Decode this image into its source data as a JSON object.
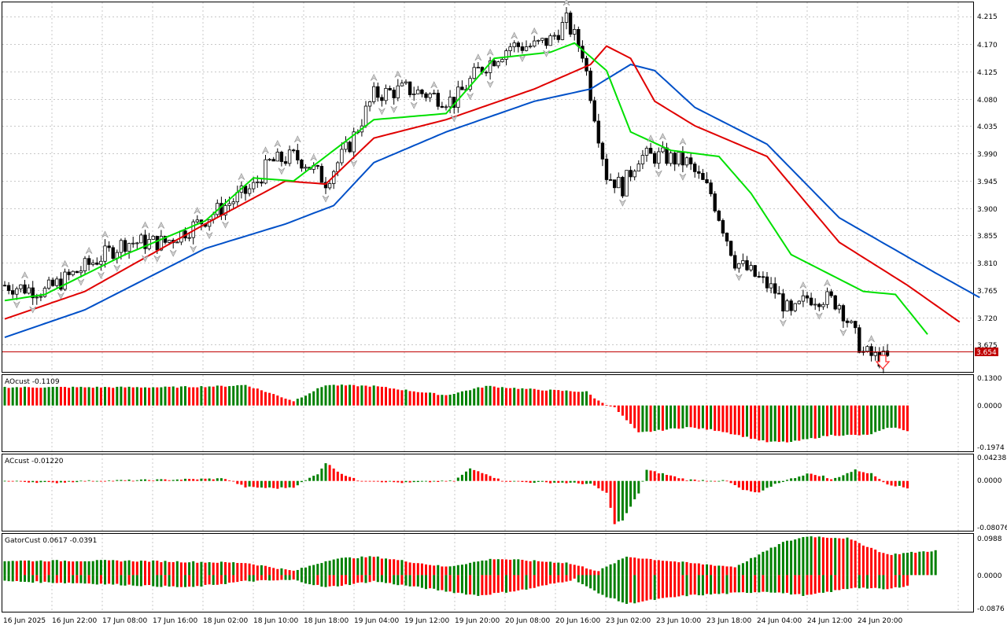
{
  "colors": {
    "bull": "#008000",
    "bear": "#ff0000",
    "jaw": "#0050c8",
    "teeth": "#e00000",
    "lips": "#00e000",
    "grid": "#c8c8c8",
    "price_line": "#c00000",
    "price_tag_bg": "#c00000"
  },
  "main": {
    "price_labels": [
      "4.215",
      "4.170",
      "4.125",
      "4.080",
      "4.035",
      "3.990",
      "3.945",
      "3.900",
      "3.855",
      "3.810",
      "3.765",
      "3.720",
      "3.675"
    ],
    "current_price": "3.654",
    "sell_arrow_icon": "down-arrow-icon",
    "fractal_icon": "fractal-arrow-icon"
  },
  "panels": {
    "ao": {
      "label": "AOcust -0.1109",
      "scale": [
        "0.1300",
        "0.0000",
        "-0.1974"
      ]
    },
    "ac": {
      "label": "ACcust -0.01220",
      "scale": [
        "0.04238",
        "0.0000",
        "-0.08076"
      ]
    },
    "gator": {
      "label": "GatorCust 0.0617 -0.0391",
      "scale": [
        "0.0988",
        "0.0000",
        "-0.0876"
      ]
    }
  },
  "time_labels": [
    "16 Jun 2025",
    "16 Jun 22:00",
    "17 Jun 08:00",
    "17 Jun 16:00",
    "18 Jun 02:00",
    "18 Jun 10:00",
    "18 Jun 18:00",
    "19 Jun 04:00",
    "19 Jun 12:00",
    "19 Jun 20:00",
    "20 Jun 08:00",
    "20 Jun 16:00",
    "23 Jun 02:00",
    "23 Jun 10:00",
    "23 Jun 18:00",
    "24 Jun 04:00",
    "24 Jun 12:00",
    "24 Jun 20:00"
  ],
  "chart_data": {
    "type": "candlestick",
    "y_range": [
      3.63,
      4.23
    ],
    "close_path": [
      [
        0,
        3.77
      ],
      [
        10,
        3.76
      ],
      [
        20,
        3.8
      ],
      [
        30,
        3.84
      ],
      [
        40,
        3.84
      ],
      [
        48,
        3.87
      ],
      [
        55,
        3.9
      ],
      [
        62,
        3.93
      ],
      [
        66,
        3.97
      ],
      [
        72,
        3.98
      ],
      [
        75,
        3.97
      ],
      [
        80,
        3.94
      ],
      [
        86,
        4.0
      ],
      [
        92,
        4.08
      ],
      [
        100,
        4.09
      ],
      [
        106,
        4.08
      ],
      [
        112,
        4.07
      ],
      [
        118,
        4.12
      ],
      [
        126,
        4.16
      ],
      [
        132,
        4.16
      ],
      [
        136,
        4.17
      ],
      [
        140,
        4.2
      ],
      [
        144,
        4.15
      ],
      [
        150,
        3.95
      ],
      [
        154,
        3.93
      ],
      [
        158,
        3.98
      ],
      [
        164,
        3.98
      ],
      [
        170,
        3.97
      ],
      [
        176,
        3.92
      ],
      [
        182,
        3.81
      ],
      [
        188,
        3.78
      ],
      [
        192,
        3.76
      ],
      [
        196,
        3.72
      ],
      [
        200,
        3.75
      ],
      [
        204,
        3.75
      ],
      [
        208,
        3.74
      ],
      [
        211,
        3.7
      ],
      [
        214,
        3.66
      ],
      [
        218,
        3.65
      ],
      [
        220,
        3.65
      ]
    ],
    "alligator": {
      "jaw": [
        [
          0,
          3.685
        ],
        [
          20,
          3.73
        ],
        [
          50,
          3.83
        ],
        [
          70,
          3.87
        ],
        [
          82,
          3.9
        ],
        [
          92,
          3.97
        ],
        [
          110,
          4.02
        ],
        [
          132,
          4.07
        ],
        [
          146,
          4.09
        ],
        [
          156,
          4.13
        ],
        [
          162,
          4.12
        ],
        [
          172,
          4.06
        ],
        [
          190,
          4.0
        ],
        [
          208,
          3.88
        ],
        [
          232,
          3.79
        ],
        [
          243,
          3.75
        ]
      ],
      "teeth": [
        [
          0,
          3.715
        ],
        [
          20,
          3.76
        ],
        [
          50,
          3.87
        ],
        [
          70,
          3.94
        ],
        [
          80,
          3.935
        ],
        [
          92,
          4.01
        ],
        [
          110,
          4.04
        ],
        [
          132,
          4.09
        ],
        [
          146,
          4.13
        ],
        [
          150,
          4.16
        ],
        [
          156,
          4.14
        ],
        [
          162,
          4.07
        ],
        [
          172,
          4.03
        ],
        [
          190,
          3.98
        ],
        [
          208,
          3.84
        ],
        [
          225,
          3.77
        ],
        [
          238,
          3.71
        ]
      ],
      "lips": [
        [
          0,
          3.745
        ],
        [
          10,
          3.755
        ],
        [
          30,
          3.82
        ],
        [
          50,
          3.875
        ],
        [
          62,
          3.945
        ],
        [
          72,
          3.94
        ],
        [
          92,
          4.04
        ],
        [
          110,
          4.05
        ],
        [
          122,
          4.14
        ],
        [
          136,
          4.15
        ],
        [
          142,
          4.165
        ],
        [
          150,
          4.12
        ],
        [
          156,
          4.02
        ],
        [
          166,
          3.99
        ],
        [
          178,
          3.98
        ],
        [
          186,
          3.92
        ],
        [
          196,
          3.82
        ],
        [
          208,
          3.78
        ],
        [
          214,
          3.76
        ],
        [
          222,
          3.755
        ],
        [
          230,
          3.69
        ]
      ]
    },
    "ao": {
      "range": [
        -0.1974,
        0.13
      ],
      "samples": [
        [
          0,
          0.08
        ],
        [
          25,
          0.08
        ],
        [
          40,
          0.08
        ],
        [
          55,
          0.085
        ],
        [
          60,
          0.09
        ],
        [
          72,
          0.02
        ],
        [
          80,
          0.09
        ],
        [
          92,
          0.085
        ],
        [
          110,
          0.045
        ],
        [
          120,
          0.085
        ],
        [
          132,
          0.07
        ],
        [
          145,
          0.06
        ],
        [
          148,
          0.02
        ],
        [
          152,
          -0.01
        ],
        [
          158,
          -0.12
        ],
        [
          170,
          -0.095
        ],
        [
          178,
          -0.11
        ],
        [
          190,
          -0.16
        ],
        [
          196,
          -0.16
        ],
        [
          206,
          -0.13
        ],
        [
          215,
          -0.13
        ],
        [
          221,
          -0.095
        ],
        [
          225,
          -0.11
        ]
      ]
    },
    "ac": {
      "range": [
        -0.08076,
        0.04238
      ],
      "samples": [
        [
          0,
          0.0
        ],
        [
          12,
          -0.003
        ],
        [
          20,
          0.0
        ],
        [
          40,
          0.002
        ],
        [
          55,
          0.004
        ],
        [
          60,
          -0.01
        ],
        [
          68,
          -0.012
        ],
        [
          72,
          -0.01
        ],
        [
          78,
          0.012
        ],
        [
          80,
          0.03
        ],
        [
          84,
          0.012
        ],
        [
          88,
          0.001
        ],
        [
          100,
          -0.003
        ],
        [
          112,
          0.0
        ],
        [
          116,
          0.02
        ],
        [
          120,
          0.012
        ],
        [
          124,
          0.0
        ],
        [
          130,
          -0.002
        ],
        [
          140,
          -0.003
        ],
        [
          146,
          -0.005
        ],
        [
          150,
          -0.02
        ],
        [
          152,
          -0.07
        ],
        [
          154,
          -0.065
        ],
        [
          158,
          -0.02
        ],
        [
          160,
          0.018
        ],
        [
          164,
          0.012
        ],
        [
          170,
          0.002
        ],
        [
          180,
          0.0
        ],
        [
          184,
          -0.015
        ],
        [
          188,
          -0.02
        ],
        [
          192,
          -0.005
        ],
        [
          200,
          0.012
        ],
        [
          204,
          0.008
        ],
        [
          206,
          0.002
        ],
        [
          212,
          0.018
        ],
        [
          216,
          0.012
        ],
        [
          220,
          -0.005
        ],
        [
          225,
          -0.012
        ]
      ]
    },
    "gator": {
      "range": [
        -0.0876,
        0.0988
      ],
      "upper": [
        [
          0,
          0.035
        ],
        [
          30,
          0.035
        ],
        [
          60,
          0.03
        ],
        [
          72,
          0.01
        ],
        [
          82,
          0.04
        ],
        [
          92,
          0.045
        ],
        [
          110,
          0.02
        ],
        [
          122,
          0.04
        ],
        [
          140,
          0.03
        ],
        [
          148,
          0.01
        ],
        [
          155,
          0.045
        ],
        [
          170,
          0.03
        ],
        [
          182,
          0.02
        ],
        [
          194,
          0.08
        ],
        [
          200,
          0.095
        ],
        [
          210,
          0.09
        ],
        [
          220,
          0.05
        ],
        [
          232,
          0.06
        ]
      ],
      "lower": [
        [
          0,
          -0.015
        ],
        [
          20,
          -0.02
        ],
        [
          46,
          -0.03
        ],
        [
          60,
          -0.015
        ],
        [
          72,
          -0.012
        ],
        [
          80,
          -0.03
        ],
        [
          92,
          -0.015
        ],
        [
          118,
          -0.05
        ],
        [
          130,
          -0.035
        ],
        [
          142,
          -0.01
        ],
        [
          148,
          -0.045
        ],
        [
          155,
          -0.07
        ],
        [
          162,
          -0.06
        ],
        [
          170,
          -0.05
        ],
        [
          190,
          -0.04
        ],
        [
          200,
          -0.05
        ],
        [
          212,
          -0.03
        ],
        [
          220,
          -0.035
        ],
        [
          225,
          -0.025
        ]
      ]
    }
  }
}
